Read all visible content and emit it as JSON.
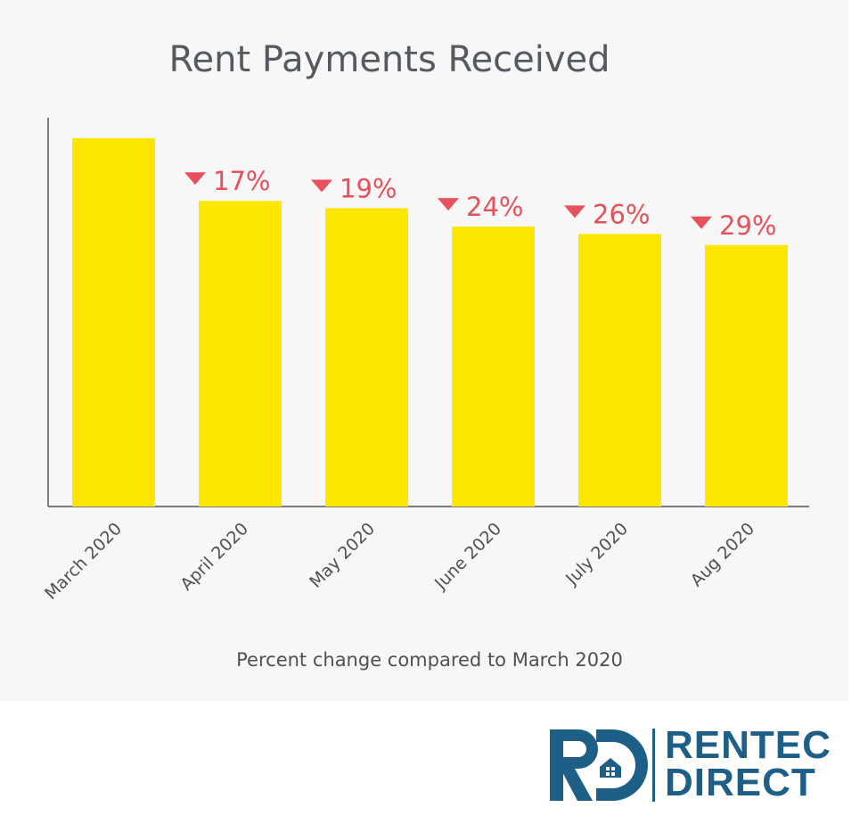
{
  "chart_data": {
    "type": "bar",
    "title": "Rent Payments Received",
    "xlabel": "Percent change compared to March 2020",
    "categories": [
      "March 2020",
      "April 2020",
      "May 2020",
      "June 2020",
      "July 2020",
      "Aug 2020"
    ],
    "values": [
      100,
      83,
      81,
      76,
      74,
      71
    ],
    "annotations": [
      "",
      "17%",
      "19%",
      "24%",
      "26%",
      "29%"
    ],
    "ylim": [
      0,
      105
    ],
    "grid": false,
    "bar_color": "#fde600",
    "annotation_color": "#e8505b",
    "y_ticks_shown": false
  },
  "logo": {
    "line1": "RENTEC",
    "line2": "DIRECT",
    "color": "#1d5f86"
  }
}
